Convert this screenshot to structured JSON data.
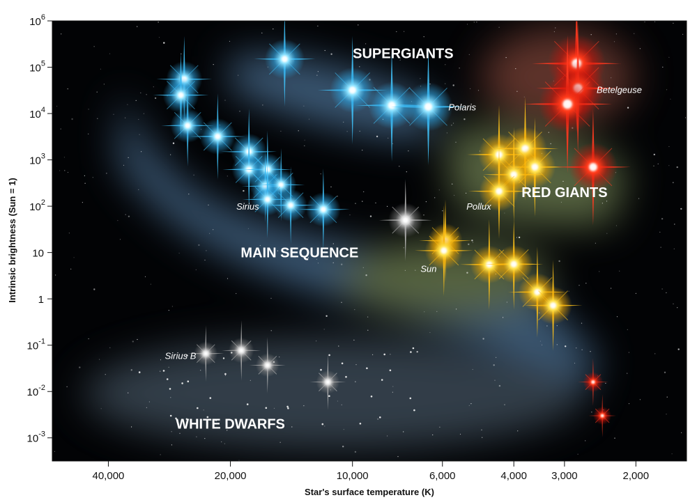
{
  "chart_data": {
    "type": "scatter",
    "xlabel": "Star's surface temperature (K)",
    "ylabel": "Intrinsic brightness (Sun = 1)",
    "x_scale": "log-reversed",
    "xlim": [
      55000,
      1500
    ],
    "ylim_log10": [
      -3.5,
      6
    ],
    "x_ticks": [
      {
        "value": 40000,
        "label": "40,000"
      },
      {
        "value": 20000,
        "label": "20,000"
      },
      {
        "value": 10000,
        "label": "10,000"
      },
      {
        "value": 6000,
        "label": "6,000"
      },
      {
        "value": 4000,
        "label": "4,000"
      },
      {
        "value": 3000,
        "label": "3,000"
      },
      {
        "value": 2000,
        "label": "2,000"
      }
    ],
    "y_ticks": [
      {
        "exp": 6,
        "base": "10",
        "sup": "6"
      },
      {
        "exp": 5,
        "base": "10",
        "sup": "5"
      },
      {
        "exp": 4,
        "base": "10",
        "sup": "4"
      },
      {
        "exp": 3,
        "base": "10",
        "sup": "3"
      },
      {
        "exp": 2,
        "base": "10",
        "sup": "2"
      },
      {
        "exp": 1,
        "base": "10",
        "sup": ""
      },
      {
        "exp": 0,
        "base": "1",
        "sup": ""
      },
      {
        "exp": -1,
        "base": "10",
        "sup": "-1"
      },
      {
        "exp": -2,
        "base": "10",
        "sup": "-2"
      },
      {
        "exp": -3,
        "base": "10",
        "sup": "-3"
      }
    ],
    "regions": [
      {
        "name": "SUPERGIANTS",
        "x": 7500,
        "y": 200000
      },
      {
        "name": "RED GIANTS",
        "x": 3000,
        "y": 200
      },
      {
        "name": "MAIN SEQUENCE",
        "x": 13500,
        "y": 10
      },
      {
        "name": "WHITE DWARFS",
        "x": 20000,
        "y": 0.002
      }
    ],
    "colors": {
      "background": "#020305",
      "blue": "#4fc3f7",
      "yellow": "#ffd21a",
      "red": "#ff2a12",
      "white": "#c4c4c4",
      "band_blue": "#6a9fd0",
      "band_green": "#9ab070",
      "band_red": "#a85a48"
    },
    "series": [
      {
        "color": "blue",
        "points": [
          {
            "x": 26000,
            "y": 55000,
            "s": 1.0
          },
          {
            "x": 26500,
            "y": 25000,
            "s": 1.0
          },
          {
            "x": 25500,
            "y": 5500,
            "s": 0.95
          },
          {
            "x": 21500,
            "y": 3200,
            "s": 1.0
          },
          {
            "x": 18000,
            "y": 1500,
            "s": 1.0
          },
          {
            "x": 18000,
            "y": 620,
            "s": 0.95
          },
          {
            "x": 16200,
            "y": 620,
            "s": 0.9
          },
          {
            "x": 16400,
            "y": 270,
            "s": 0.85
          },
          {
            "x": 15000,
            "y": 290,
            "s": 0.85
          },
          {
            "x": 16200,
            "y": 140,
            "s": 0.9
          },
          {
            "x": 14200,
            "y": 105,
            "s": 0.9
          },
          {
            "x": 11800,
            "y": 85,
            "s": 0.95
          },
          {
            "x": 14700,
            "y": 150000,
            "s": 1.1
          },
          {
            "x": 10000,
            "y": 32000,
            "s": 1.25
          },
          {
            "x": 8000,
            "y": 15000,
            "s": 1.3
          },
          {
            "x": 6500,
            "y": 14000,
            "s": 1.35
          }
        ]
      },
      {
        "color": "yellow",
        "points": [
          {
            "x": 4350,
            "y": 1300,
            "s": 1.15
          },
          {
            "x": 3750,
            "y": 1750,
            "s": 1.2
          },
          {
            "x": 3550,
            "y": 700,
            "s": 1.15
          },
          {
            "x": 4000,
            "y": 480,
            "s": 1.1
          },
          {
            "x": 4350,
            "y": 210,
            "s": 1.1
          },
          {
            "x": 5900,
            "y": 18,
            "s": 0.95
          },
          {
            "x": 5950,
            "y": 11,
            "s": 1.05
          },
          {
            "x": 4600,
            "y": 5.5,
            "s": 1.05
          },
          {
            "x": 4000,
            "y": 5.6,
            "s": 1.05
          },
          {
            "x": 3500,
            "y": 1.4,
            "s": 1.05
          },
          {
            "x": 3200,
            "y": 0.72,
            "s": 1.05
          }
        ]
      },
      {
        "color": "red",
        "points": [
          {
            "x": 2800,
            "y": 120000,
            "s": 1.6
          },
          {
            "x": 2780,
            "y": 35000,
            "s": 1.5
          },
          {
            "x": 2950,
            "y": 16000,
            "s": 1.6
          },
          {
            "x": 2550,
            "y": 700,
            "s": 1.35
          },
          {
            "x": 2550,
            "y": 0.016,
            "s": 0.55
          },
          {
            "x": 2420,
            "y": 0.003,
            "s": 0.5
          }
        ]
      },
      {
        "color": "white",
        "points": [
          {
            "x": 7400,
            "y": 50,
            "s": 0.95
          },
          {
            "x": 23000,
            "y": 0.066,
            "s": 0.65
          },
          {
            "x": 18800,
            "y": 0.077,
            "s": 0.7
          },
          {
            "x": 16200,
            "y": 0.037,
            "s": 0.65
          },
          {
            "x": 11500,
            "y": 0.016,
            "s": 0.65
          }
        ]
      }
    ],
    "labels": [
      {
        "text": "Polaris",
        "x": 5800,
        "y": 14000,
        "anchor": "start"
      },
      {
        "text": "Betelgeuse",
        "x": 2500,
        "y": 33000,
        "anchor": "start"
      },
      {
        "text": "Sirius",
        "x": 17000,
        "y": 100,
        "anchor": "end"
      },
      {
        "text": "Pollux",
        "x": 4550,
        "y": 100,
        "anchor": "end"
      },
      {
        "text": "Sun",
        "x": 6200,
        "y": 4.5,
        "anchor": "end"
      },
      {
        "text": "Sirius B",
        "x": 24300,
        "y": 0.06,
        "anchor": "end"
      }
    ]
  }
}
